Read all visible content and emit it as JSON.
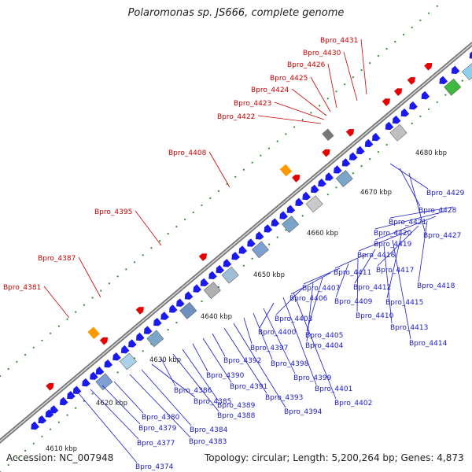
{
  "title": "Polaromonas sp. JS666, complete genome",
  "footer": {
    "accession": "Accession: NC_007948",
    "summary": "Topology: circular; Length: 5,200,264 bp; Genes: 4,873"
  },
  "colors": {
    "forward": "#e60000",
    "reverse": "#1a1aee",
    "forward_label": "#cc0000",
    "reverse_label": "#1a1acc",
    "backbone": "#8c8c8c",
    "gc_dots": "#2e8b2e"
  },
  "ticks": [
    "4610 kbp",
    "4620 kbp",
    "4630 kbp",
    "4640 kbp",
    "4650 kbp",
    "4660 kbp",
    "4670 kbp",
    "4680 kbp"
  ],
  "forward_labels": [
    "Bpro_4381",
    "Bpro_4387",
    "Bpro_4395",
    "Bpro_4408",
    "Bpro_4422",
    "Bpro_4423",
    "Bpro_4424",
    "Bpro_4425",
    "Bpro_4426",
    "Bpro_4430",
    "Bpro_4431"
  ],
  "reverse_labels": [
    "Bpro_4374",
    "Bpro_4377",
    "Bpro_4379",
    "Bpro_4380",
    "Bpro_4383",
    "Bpro_4384",
    "Bpro_4385",
    "Bpro_4386",
    "Bpro_4388",
    "Bpro_4389",
    "Bpro_4390",
    "Bpro_4391",
    "Bpro_4392",
    "Bpro_4393",
    "Bpro_4394",
    "Bpro_4397",
    "Bpro_4398",
    "Bpro_4399",
    "Bpro_4400",
    "Bpro_4401",
    "Bpro_4402",
    "Bpro_4403",
    "Bpro_4404",
    "Bpro_4405",
    "Bpro_4406",
    "Bpro_4407",
    "Bpro_4409",
    "Bpro_4410",
    "Bpro_4411",
    "Bpro_4412",
    "Bpro_4413",
    "Bpro_4414",
    "Bpro_4415",
    "Bpro_4416",
    "Bpro_4417",
    "Bpro_4418",
    "Bpro_4419",
    "Bpro_4420",
    "Bpro_4421",
    "Bpro_4427",
    "Bpro_4428",
    "Bpro_4429"
  ]
}
